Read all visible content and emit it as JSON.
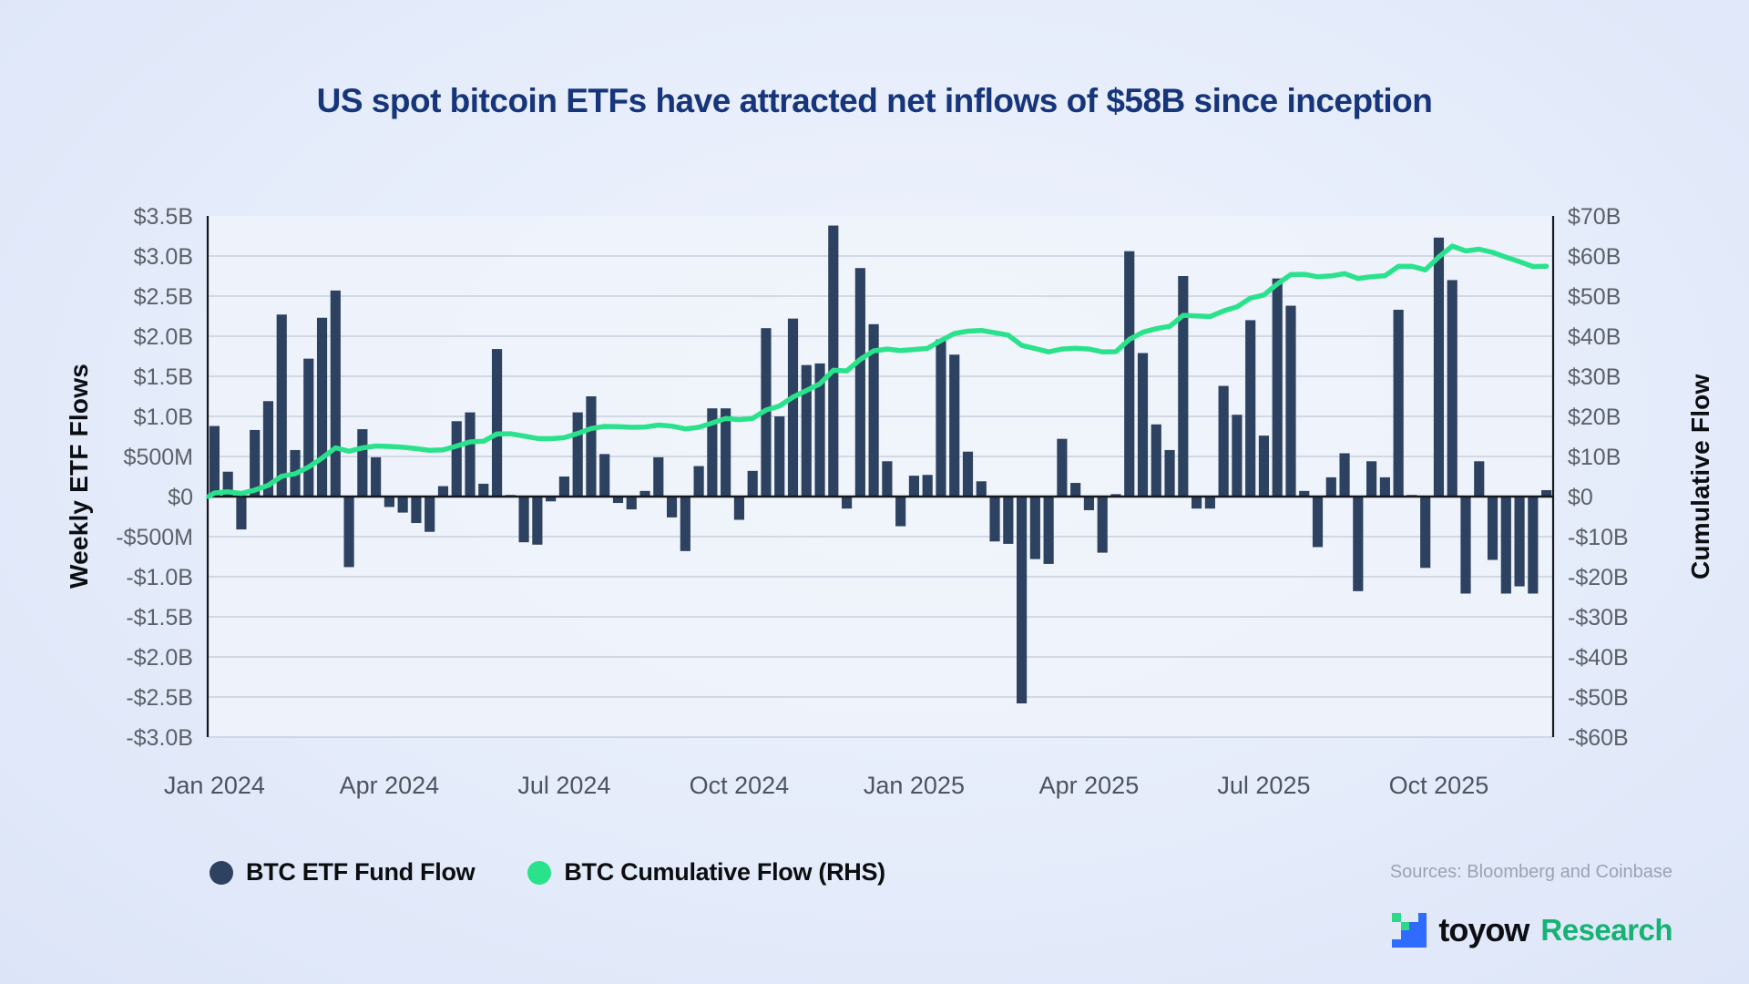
{
  "title": "US spot bitcoin ETFs have attracted net inflows of $58B since inception",
  "sources": "Sources: Bloomberg and Coinbase",
  "branding": {
    "name": "toyow",
    "suffix": "Research"
  },
  "colors": {
    "bar": "#2d4160",
    "line": "#2be28c",
    "title": "#16357b",
    "tick_label": "#5c6169",
    "x_label": "#4e545e",
    "gridline": "#c9d0dc",
    "zero_line": "#15181d",
    "plot_background": "#f0f4fb",
    "logo_blue": "#2f6bff",
    "logo_green": "#2cd98a",
    "brand_green": "#17b373"
  },
  "chart_data": {
    "type": "bar+line",
    "title": "US spot bitcoin ETFs have attracted net inflows of $58B since inception",
    "x_axis": {
      "tick_labels": [
        "Jan 2024",
        "Apr 2024",
        "Jul 2024",
        "Oct 2024",
        "Jan 2025",
        "Apr 2025",
        "Jul 2025",
        "Oct 2025"
      ],
      "tick_week_indices": [
        0,
        13,
        26,
        39,
        52,
        65,
        78,
        91
      ],
      "unit": "weeks"
    },
    "left_axis": {
      "label": "Weekly ETF Flows",
      "ylim": [
        -3.0,
        3.5
      ],
      "ticks": [
        {
          "label": "$3.5B",
          "value": 3.5
        },
        {
          "label": "$3.0B",
          "value": 3.0
        },
        {
          "label": "$2.5B",
          "value": 2.5
        },
        {
          "label": "$2.0B",
          "value": 2.0
        },
        {
          "label": "$1.5B",
          "value": 1.5
        },
        {
          "label": "$1.0B",
          "value": 1.0
        },
        {
          "label": "$500M",
          "value": 0.5
        },
        {
          "label": "$0",
          "value": 0.0
        },
        {
          "label": "-$500M",
          "value": -0.5
        },
        {
          "label": "-$1.0B",
          "value": -1.0
        },
        {
          "label": "-$1.5B",
          "value": -1.5
        },
        {
          "label": "-$2.0B",
          "value": -2.0
        },
        {
          "label": "-$2.5B",
          "value": -2.5
        },
        {
          "label": "-$3.0B",
          "value": -3.0
        }
      ]
    },
    "right_axis": {
      "label": "Cumulative Flow",
      "ylim": [
        -60,
        70
      ],
      "scale_to_left": 20,
      "ticks": [
        {
          "label": "$70B",
          "value": 70
        },
        {
          "label": "$60B",
          "value": 60
        },
        {
          "label": "$50B",
          "value": 50
        },
        {
          "label": "$40B",
          "value": 40
        },
        {
          "label": "$30B",
          "value": 30
        },
        {
          "label": "$20B",
          "value": 20
        },
        {
          "label": "$10B",
          "value": 10
        },
        {
          "label": "$0",
          "value": 0
        },
        {
          "label": "-$10B",
          "value": -10
        },
        {
          "label": "-$20B",
          "value": -20
        },
        {
          "label": "-$30B",
          "value": -30
        },
        {
          "label": "-$40B",
          "value": -40
        },
        {
          "label": "-$50B",
          "value": -50
        },
        {
          "label": "-$60B",
          "value": -60
        }
      ]
    },
    "series": [
      {
        "name": "BTC ETF Fund Flow",
        "type": "bar",
        "axis": "left",
        "unit": "USD billions per week",
        "color": "#2d4160",
        "values": [
          0.88,
          0.31,
          -0.41,
          0.83,
          1.19,
          2.27,
          0.58,
          1.72,
          2.23,
          2.57,
          -0.88,
          0.84,
          0.49,
          -0.13,
          -0.2,
          -0.33,
          -0.44,
          0.13,
          0.94,
          1.05,
          0.16,
          1.84,
          0.02,
          -0.57,
          -0.6,
          -0.06,
          0.25,
          1.05,
          1.25,
          0.53,
          -0.08,
          -0.16,
          0.07,
          0.49,
          -0.26,
          -0.68,
          0.38,
          1.1,
          1.1,
          -0.29,
          0.32,
          2.1,
          1.0,
          2.22,
          1.64,
          1.66,
          3.38,
          -0.15,
          2.85,
          2.15,
          0.44,
          -0.37,
          0.26,
          0.27,
          1.96,
          1.77,
          0.56,
          0.19,
          -0.56,
          -0.59,
          -2.58,
          -0.78,
          -0.84,
          0.72,
          0.17,
          -0.17,
          -0.7,
          0.03,
          3.06,
          1.79,
          0.9,
          0.58,
          2.75,
          -0.15,
          -0.15,
          1.38,
          1.02,
          2.2,
          0.76,
          2.72,
          2.38,
          0.07,
          -0.63,
          0.24,
          0.54,
          -1.18,
          0.44,
          0.24,
          2.33,
          0.02,
          -0.89,
          3.23,
          2.7,
          -1.21,
          0.44,
          -0.79,
          -1.21,
          -1.12,
          -1.21,
          0.08
        ]
      },
      {
        "name": "BTC Cumulative Flow (RHS)",
        "type": "line",
        "axis": "right",
        "unit": "USD billions cumulative",
        "color": "#2be28c",
        "derivation": "running sum of weekly BTC ETF fund flows",
        "final_value_approx": 58
      }
    ],
    "gridlines": true,
    "legend_position": "bottom-left"
  }
}
